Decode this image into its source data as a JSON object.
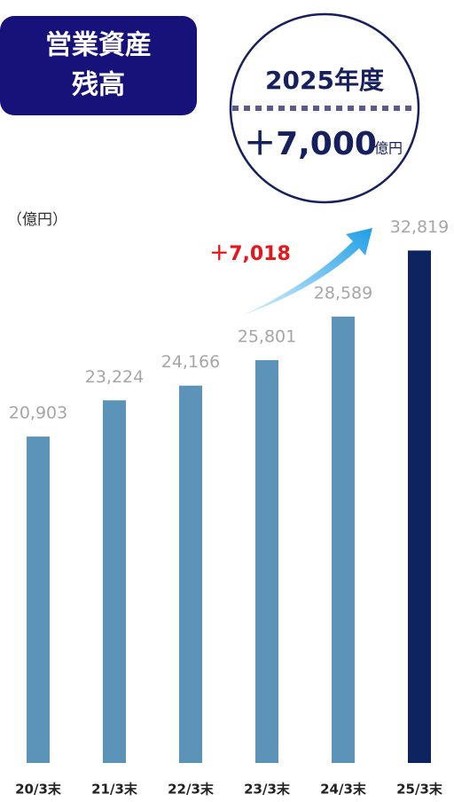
{
  "chart_data": {
    "type": "bar",
    "title": [
      "営業資産",
      "残高"
    ],
    "unit_label": "（億円）",
    "target": {
      "label": "2025年度",
      "amount": "＋7,000",
      "unit": "億円"
    },
    "annotation": "＋7,018",
    "categories": [
      "20/3末",
      "21/3末",
      "22/3末",
      "23/3末",
      "24/3末",
      "25/3末"
    ],
    "values": [
      20903,
      23224,
      24166,
      25801,
      28589,
      32819
    ],
    "value_labels": [
      "20,903",
      "23,224",
      "24,166",
      "25,801",
      "28,589",
      "32,819"
    ],
    "colors": [
      "#5b93b9",
      "#5b93b9",
      "#5b93b9",
      "#5b93b9",
      "#5b93b9",
      "#0e2461"
    ],
    "ylim": [
      0,
      35000
    ]
  }
}
